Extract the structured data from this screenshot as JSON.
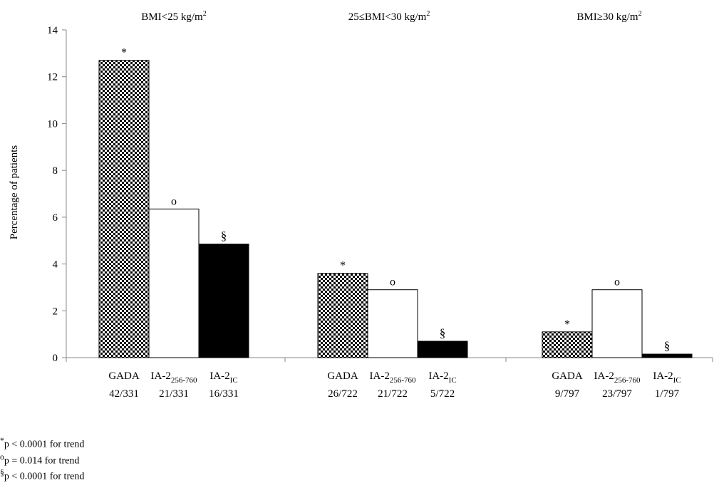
{
  "chart_data": {
    "type": "bar",
    "ylabel": "Percentage of patients",
    "ylim": [
      0,
      14
    ],
    "yticks": [
      0,
      2,
      4,
      6,
      8,
      10,
      12,
      14
    ],
    "grid": false,
    "series": [
      {
        "name": "GADA",
        "pattern": "checkered",
        "values": [
          12.7,
          3.6,
          1.1
        ]
      },
      {
        "name": "IA-2256-760",
        "pattern": "white",
        "values": [
          6.35,
          2.9,
          2.9
        ]
      },
      {
        "name": "IA-2IC",
        "pattern": "black",
        "values": [
          4.85,
          0.7,
          0.15
        ]
      }
    ],
    "groups": [
      {
        "title": "BMI<25 kg/m",
        "title_sup": "2",
        "bars": [
          {
            "label": "GADA",
            "label_sub": "",
            "count": "42/331",
            "value": 12.7,
            "marker": "*",
            "pattern": "checkered"
          },
          {
            "label": "IA-2",
            "label_sub": "256-760",
            "count": "21/331",
            "value": 6.35,
            "marker": "o",
            "pattern": "white"
          },
          {
            "label": "IA-2",
            "label_sub": "IC",
            "count": "16/331",
            "value": 4.85,
            "marker": "§",
            "pattern": "black"
          }
        ]
      },
      {
        "title": "25≤BMI<30 kg/m",
        "title_sup": "2",
        "bars": [
          {
            "label": "GADA",
            "label_sub": "",
            "count": "26/722",
            "value": 3.6,
            "marker": "*",
            "pattern": "checkered"
          },
          {
            "label": "IA-2",
            "label_sub": "256-760",
            "count": "21/722",
            "value": 2.9,
            "marker": "o",
            "pattern": "white"
          },
          {
            "label": "IA-2",
            "label_sub": "IC",
            "count": "5/722",
            "value": 0.7,
            "marker": "§",
            "pattern": "black"
          }
        ]
      },
      {
        "title": "BMI≥30 kg/m",
        "title_sup": "2",
        "bars": [
          {
            "label": "GADA",
            "label_sub": "",
            "count": "9/797",
            "value": 1.1,
            "marker": "*",
            "pattern": "checkered"
          },
          {
            "label": "IA-2",
            "label_sub": "256-760",
            "count": "23/797",
            "value": 2.9,
            "marker": "o",
            "pattern": "white"
          },
          {
            "label": "IA-2",
            "label_sub": "IC",
            "count": "1/797",
            "value": 0.15,
            "marker": "§",
            "pattern": "black"
          }
        ]
      }
    ]
  },
  "footnotes": [
    {
      "symbol": "*",
      "text": "p < 0.0001 for trend"
    },
    {
      "symbol": "o",
      "text": "p = 0.014 for trend"
    },
    {
      "symbol": "§",
      "text": "p < 0.0001 for trend"
    }
  ]
}
